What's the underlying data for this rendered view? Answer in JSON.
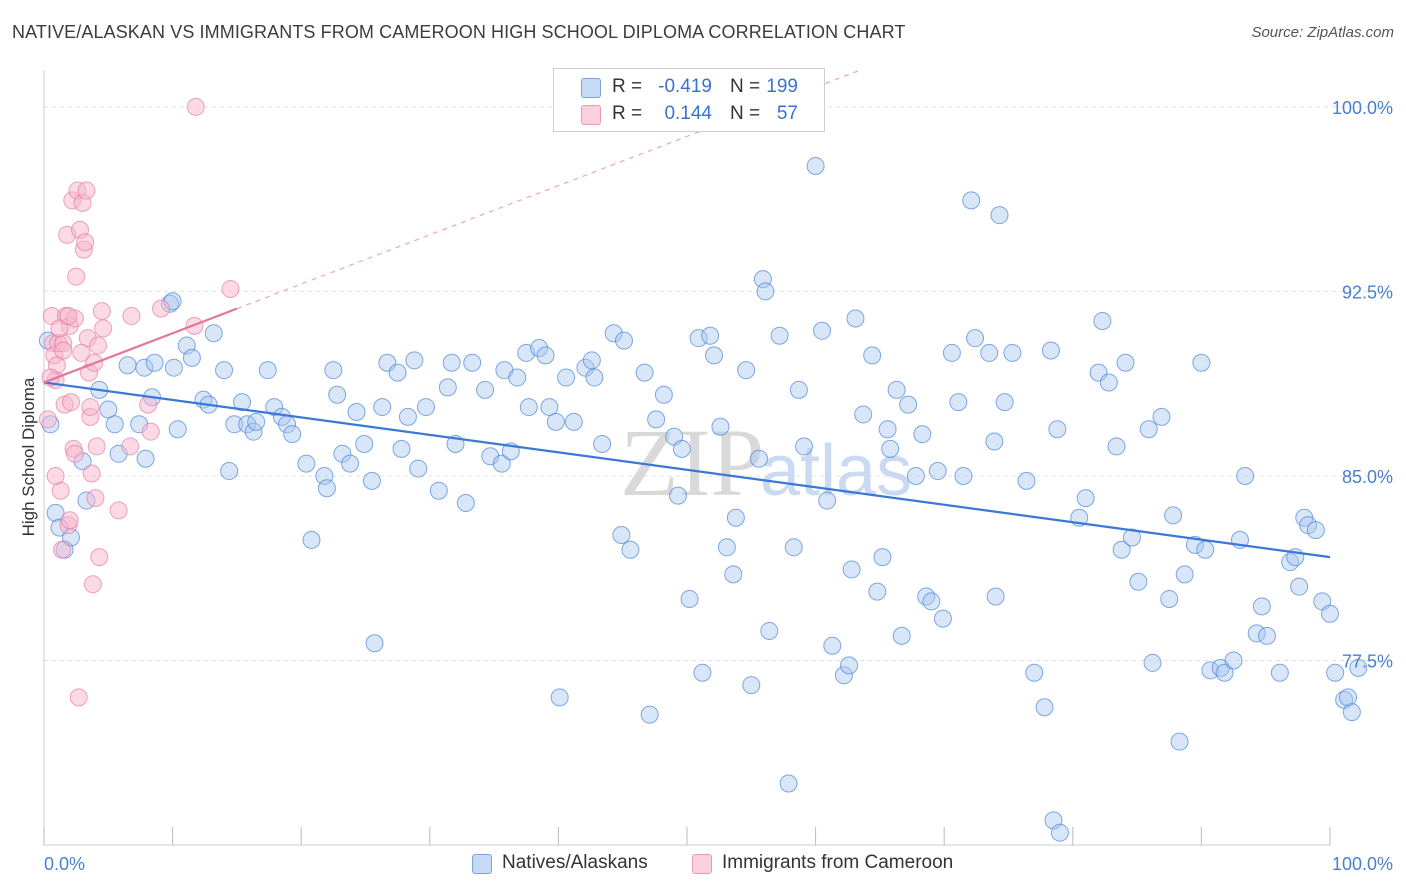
{
  "title": "NATIVE/ALASKAN VS IMMIGRANTS FROM CAMEROON HIGH SCHOOL DIPLOMA CORRELATION CHART",
  "source": "Source: ZipAtlas.com",
  "watermark": "ZIPatlas",
  "legend": {
    "rows": [
      {
        "r_label": "R =",
        "r_value": "-0.419",
        "n_label": "N =",
        "n_value": "199",
        "color": "#aac8f0"
      },
      {
        "r_label": "R =",
        "r_value": "0.144",
        "n_label": "N =",
        "n_value": "57",
        "color": "#f7b6cb"
      }
    ]
  },
  "bottom_legend": [
    {
      "label": "Natives/Alaskans",
      "color": "#aac8f0"
    },
    {
      "label": "Immigrants from Cameroon",
      "color": "#f7b6cb"
    }
  ],
  "chart_data": {
    "type": "scatter",
    "title": "NATIVE/ALASKAN VS IMMIGRANTS FROM CAMEROON HIGH SCHOOL DIPLOMA CORRELATION CHART",
    "xlabel": "",
    "ylabel": "High School Diploma",
    "xlim": [
      0,
      100
    ],
    "ylim": [
      70,
      101.5
    ],
    "x_tick_labels": [
      "0.0%",
      "100.0%"
    ],
    "y_ticks": [
      77.5,
      85.0,
      92.5,
      100.0
    ],
    "y_tick_labels": [
      "77.5%",
      "85.0%",
      "92.5%",
      "100.0%"
    ],
    "grid": true,
    "colors": {
      "natives": "#4a86d8",
      "natives_fill": "#aac8f0",
      "cameroon": "#e4769c",
      "cameroon_fill": "#f7b6cb"
    },
    "series": [
      {
        "name": "Natives/Alaskans",
        "trend": {
          "x": [
            0,
            100
          ],
          "y": [
            88.8,
            81.7
          ]
        },
        "points": [
          [
            0.3,
            90.5
          ],
          [
            0.5,
            87.1
          ],
          [
            0.9,
            83.5
          ],
          [
            1.2,
            82.9
          ],
          [
            1.6,
            82.0
          ],
          [
            2.1,
            82.5
          ],
          [
            3.0,
            85.6
          ],
          [
            3.3,
            84.0
          ],
          [
            4.3,
            88.5
          ],
          [
            5.0,
            87.7
          ],
          [
            5.5,
            87.1
          ],
          [
            5.8,
            85.9
          ],
          [
            6.5,
            89.5
          ],
          [
            7.4,
            87.1
          ],
          [
            7.8,
            89.4
          ],
          [
            7.9,
            85.7
          ],
          [
            8.6,
            89.6
          ],
          [
            8.4,
            88.2
          ],
          [
            10.1,
            89.4
          ],
          [
            10.4,
            86.9
          ],
          [
            9.8,
            92.0
          ],
          [
            10.0,
            92.1
          ],
          [
            11.1,
            90.3
          ],
          [
            11.5,
            89.8
          ],
          [
            12.4,
            88.1
          ],
          [
            12.8,
            87.9
          ],
          [
            13.2,
            90.8
          ],
          [
            14.0,
            89.3
          ],
          [
            14.4,
            85.2
          ],
          [
            14.8,
            87.1
          ],
          [
            15.4,
            88.0
          ],
          [
            15.8,
            87.1
          ],
          [
            16.3,
            86.8
          ],
          [
            16.5,
            87.2
          ],
          [
            17.4,
            89.3
          ],
          [
            17.9,
            87.8
          ],
          [
            18.5,
            87.4
          ],
          [
            18.9,
            87.1
          ],
          [
            19.3,
            86.7
          ],
          [
            20.4,
            85.5
          ],
          [
            20.8,
            82.4
          ],
          [
            21.8,
            85.0
          ],
          [
            22.0,
            84.5
          ],
          [
            22.5,
            89.3
          ],
          [
            22.8,
            88.3
          ],
          [
            23.2,
            85.9
          ],
          [
            23.8,
            85.5
          ],
          [
            24.3,
            87.6
          ],
          [
            24.9,
            86.3
          ],
          [
            25.5,
            84.8
          ],
          [
            25.7,
            78.2
          ],
          [
            26.3,
            87.8
          ],
          [
            26.7,
            89.6
          ],
          [
            27.5,
            89.2
          ],
          [
            27.8,
            86.1
          ],
          [
            28.3,
            87.4
          ],
          [
            28.8,
            89.7
          ],
          [
            29.1,
            85.3
          ],
          [
            29.7,
            87.8
          ],
          [
            30.7,
            84.4
          ],
          [
            31.4,
            88.6
          ],
          [
            31.7,
            89.6
          ],
          [
            32.0,
            86.3
          ],
          [
            32.8,
            83.9
          ],
          [
            33.3,
            89.6
          ],
          [
            34.3,
            88.5
          ],
          [
            34.7,
            85.8
          ],
          [
            35.6,
            85.5
          ],
          [
            35.8,
            89.3
          ],
          [
            36.3,
            86.0
          ],
          [
            36.8,
            89.0
          ],
          [
            37.5,
            90.0
          ],
          [
            37.7,
            87.8
          ],
          [
            38.5,
            90.2
          ],
          [
            39.3,
            87.8
          ],
          [
            39.8,
            87.2
          ],
          [
            40.1,
            76.0
          ],
          [
            40.6,
            89.0
          ],
          [
            41.2,
            87.2
          ],
          [
            42.1,
            89.4
          ],
          [
            42.6,
            89.7
          ],
          [
            42.8,
            89.0
          ],
          [
            43.4,
            86.3
          ],
          [
            44.3,
            90.8
          ],
          [
            44.9,
            82.6
          ],
          [
            45.1,
            90.5
          ],
          [
            45.6,
            82.0
          ],
          [
            46.7,
            89.2
          ],
          [
            47.1,
            75.3
          ],
          [
            47.6,
            87.3
          ],
          [
            48.2,
            88.3
          ],
          [
            49.0,
            86.6
          ],
          [
            49.3,
            84.2
          ],
          [
            49.6,
            86.1
          ],
          [
            50.2,
            80.0
          ],
          [
            50.9,
            90.6
          ],
          [
            51.2,
            77.0
          ],
          [
            51.8,
            90.7
          ],
          [
            52.1,
            89.9
          ],
          [
            52.6,
            87.0
          ],
          [
            53.1,
            82.1
          ],
          [
            53.6,
            81.0
          ],
          [
            53.8,
            83.3
          ],
          [
            54.6,
            89.3
          ],
          [
            55.0,
            76.5
          ],
          [
            55.6,
            85.7
          ],
          [
            55.9,
            93.0
          ],
          [
            56.1,
            92.5
          ],
          [
            56.4,
            78.7
          ],
          [
            57.2,
            90.7
          ],
          [
            57.9,
            72.5
          ],
          [
            58.3,
            82.1
          ],
          [
            58.7,
            88.5
          ],
          [
            59.1,
            86.2
          ],
          [
            60.0,
            97.6
          ],
          [
            60.5,
            90.9
          ],
          [
            60.9,
            84.0
          ],
          [
            61.3,
            78.1
          ],
          [
            62.2,
            76.9
          ],
          [
            62.6,
            77.3
          ],
          [
            62.8,
            81.2
          ],
          [
            63.1,
            91.4
          ],
          [
            63.7,
            87.5
          ],
          [
            64.4,
            89.9
          ],
          [
            64.8,
            80.3
          ],
          [
            65.6,
            86.9
          ],
          [
            65.8,
            86.1
          ],
          [
            66.3,
            88.5
          ],
          [
            66.7,
            78.5
          ],
          [
            67.2,
            87.9
          ],
          [
            67.8,
            85.0
          ],
          [
            68.3,
            86.7
          ],
          [
            68.6,
            80.1
          ],
          [
            69.0,
            79.9
          ],
          [
            69.5,
            85.2
          ],
          [
            69.9,
            79.2
          ],
          [
            70.6,
            90.0
          ],
          [
            71.1,
            88.0
          ],
          [
            71.5,
            85.0
          ],
          [
            72.1,
            96.2
          ],
          [
            72.4,
            90.6
          ],
          [
            73.5,
            90.0
          ],
          [
            73.9,
            86.4
          ],
          [
            74.3,
            95.6
          ],
          [
            74.7,
            88.0
          ],
          [
            75.3,
            90.0
          ],
          [
            77.0,
            77.0
          ],
          [
            76.4,
            84.8
          ],
          [
            77.8,
            75.6
          ],
          [
            78.3,
            90.1
          ],
          [
            78.5,
            71.0
          ],
          [
            78.8,
            86.9
          ],
          [
            79.0,
            70.5
          ],
          [
            80.5,
            83.3
          ],
          [
            81.0,
            84.1
          ],
          [
            82.0,
            89.2
          ],
          [
            82.3,
            91.3
          ],
          [
            82.8,
            88.8
          ],
          [
            83.4,
            86.2
          ],
          [
            83.8,
            82.0
          ],
          [
            84.1,
            89.6
          ],
          [
            84.6,
            82.5
          ],
          [
            85.1,
            80.7
          ],
          [
            85.9,
            86.9
          ],
          [
            86.2,
            77.4
          ],
          [
            86.9,
            87.4
          ],
          [
            87.5,
            80.0
          ],
          [
            87.8,
            83.4
          ],
          [
            88.3,
            74.2
          ],
          [
            88.7,
            81.0
          ],
          [
            89.5,
            82.2
          ],
          [
            90.0,
            89.6
          ],
          [
            90.3,
            82.0
          ],
          [
            90.7,
            77.1
          ],
          [
            91.5,
            77.2
          ],
          [
            91.8,
            77.0
          ],
          [
            92.5,
            77.5
          ],
          [
            93.0,
            82.4
          ],
          [
            93.4,
            85.0
          ],
          [
            94.3,
            78.6
          ],
          [
            94.7,
            79.7
          ],
          [
            95.1,
            78.5
          ],
          [
            96.1,
            77.0
          ],
          [
            96.9,
            81.5
          ],
          [
            97.3,
            81.7
          ],
          [
            97.6,
            80.5
          ],
          [
            98.0,
            83.3
          ],
          [
            98.3,
            83.0
          ],
          [
            98.9,
            82.8
          ],
          [
            99.4,
            79.9
          ],
          [
            100.0,
            79.4
          ],
          [
            100.4,
            77.0
          ],
          [
            101.1,
            75.9
          ],
          [
            101.4,
            76.0
          ],
          [
            101.7,
            75.4
          ],
          [
            102.2,
            77.2
          ],
          [
            65.2,
            81.7
          ],
          [
            74.0,
            80.1
          ],
          [
            39.0,
            89.9
          ]
        ]
      },
      {
        "name": "Immigrants from Cameroon",
        "trend": {
          "x": [
            0,
            15
          ],
          "y": [
            88.8,
            91.8
          ]
        },
        "points": [
          [
            0.3,
            87.3
          ],
          [
            0.6,
            91.5
          ],
          [
            0.7,
            90.4
          ],
          [
            0.8,
            89.9
          ],
          [
            0.9,
            88.9
          ],
          [
            1.0,
            89.5
          ],
          [
            1.1,
            90.4
          ],
          [
            1.3,
            84.4
          ],
          [
            1.4,
            82.0
          ],
          [
            1.5,
            90.4
          ],
          [
            1.6,
            87.9
          ],
          [
            1.7,
            91.5
          ],
          [
            1.8,
            94.8
          ],
          [
            1.9,
            83.0
          ],
          [
            2.0,
            91.1
          ],
          [
            2.1,
            88.0
          ],
          [
            2.2,
            96.2
          ],
          [
            2.3,
            86.1
          ],
          [
            2.4,
            85.9
          ],
          [
            2.5,
            93.1
          ],
          [
            2.6,
            96.6
          ],
          [
            2.7,
            76.0
          ],
          [
            2.8,
            95.0
          ],
          [
            3.0,
            96.1
          ],
          [
            3.1,
            94.2
          ],
          [
            3.2,
            94.5
          ],
          [
            3.3,
            96.6
          ],
          [
            3.4,
            90.6
          ],
          [
            3.5,
            89.2
          ],
          [
            3.6,
            87.4
          ],
          [
            3.7,
            85.1
          ],
          [
            3.8,
            80.6
          ],
          [
            3.9,
            89.6
          ],
          [
            4.0,
            84.1
          ],
          [
            4.1,
            86.2
          ],
          [
            4.3,
            81.7
          ],
          [
            4.5,
            91.7
          ],
          [
            4.6,
            91.0
          ],
          [
            5.8,
            83.6
          ],
          [
            6.7,
            86.2
          ],
          [
            6.8,
            91.5
          ],
          [
            8.1,
            87.9
          ],
          [
            8.3,
            86.8
          ],
          [
            9.1,
            91.8
          ],
          [
            11.7,
            91.1
          ],
          [
            11.8,
            100.0
          ],
          [
            14.5,
            92.6
          ],
          [
            1.2,
            91.0
          ],
          [
            2.4,
            91.4
          ],
          [
            0.5,
            89.0
          ],
          [
            1.9,
            91.5
          ],
          [
            3.6,
            87.8
          ],
          [
            0.9,
            85.0
          ],
          [
            2.0,
            83.2
          ],
          [
            1.5,
            90.1
          ],
          [
            2.9,
            90.0
          ],
          [
            4.2,
            90.3
          ]
        ]
      }
    ]
  }
}
